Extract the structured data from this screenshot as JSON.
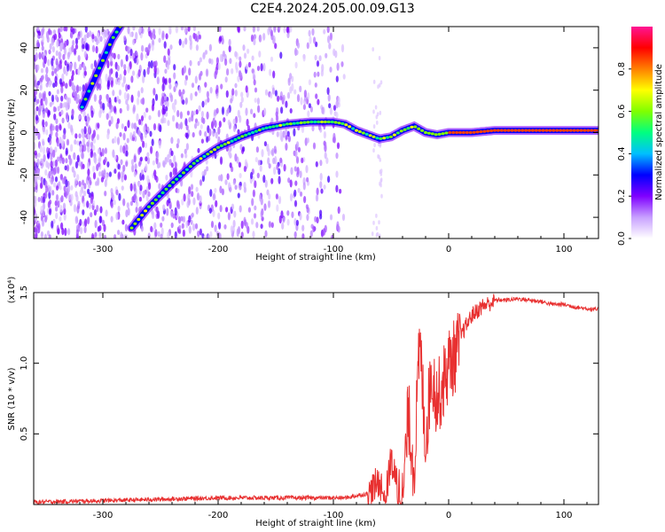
{
  "title": "C2E4.2024.205.00.09.G13",
  "chart_data": [
    {
      "type": "heatmap",
      "xlabel": "Height of straight line (km)",
      "ylabel": "Frequency (Hz)",
      "xlim": [
        -360,
        130
      ],
      "ylim": [
        -50,
        50
      ],
      "x_ticks": [
        -300,
        -200,
        -100,
        0,
        100
      ],
      "x_tick_labels": [
        "-300",
        "-200",
        "-100",
        "0",
        "100"
      ],
      "y_ticks": [
        -40,
        -20,
        0,
        20,
        40
      ],
      "y_tick_labels": [
        "-40",
        "-20",
        "0",
        "20",
        "40"
      ],
      "ridge": {
        "x": [
          -275,
          -260,
          -240,
          -220,
          -200,
          -180,
          -160,
          -140,
          -120,
          -100,
          -90,
          -80,
          -70,
          -60,
          -50,
          -40,
          -30,
          -20,
          -10,
          0,
          20,
          40,
          60,
          80,
          100,
          130
        ],
        "y": [
          -45,
          -35,
          -24,
          -14,
          -7,
          -2,
          2,
          4,
          5,
          5,
          4,
          1,
          -1,
          -3,
          -2,
          1,
          3,
          0,
          -1,
          0,
          0,
          1,
          1,
          1,
          1,
          1
        ]
      },
      "upper_branch": {
        "x": [
          -318,
          -310,
          -300,
          -292,
          -285
        ],
        "y": [
          12,
          22,
          34,
          44,
          50
        ]
      },
      "colorbar": {
        "label": "Normalized spectral amplitude",
        "range": [
          0,
          1
        ],
        "ticks": [
          0.0,
          0.2,
          0.4,
          0.6,
          0.8
        ],
        "tick_labels": [
          "0.0",
          "0.2",
          "0.4",
          "0.6",
          "0.8"
        ],
        "colors": [
          "#ffffff",
          "#c8a0ff",
          "#7f00ff",
          "#0000ff",
          "#00bfff",
          "#00ff80",
          "#80ff00",
          "#ffff00",
          "#ff8000",
          "#ff0000",
          "#ff1493"
        ]
      }
    },
    {
      "type": "line",
      "xlabel": "Height of straight line (km)",
      "ylabel": "SNR (10 * v/v)",
      "scale_label": "(x10⁴)",
      "xlim": [
        -360,
        130
      ],
      "ylim": [
        0,
        1.5
      ],
      "x_ticks": [
        -300,
        -200,
        -100,
        0,
        100
      ],
      "x_tick_labels": [
        "-300",
        "-200",
        "-100",
        "0",
        "100"
      ],
      "y_ticks": [
        0.5,
        1.0,
        1.5
      ],
      "y_tick_labels": [
        "0.5",
        "1.0",
        "1.5"
      ],
      "color": "#e83030",
      "x": [
        -360,
        -300,
        -200,
        -120,
        -90,
        -70,
        -60,
        -55,
        -50,
        -45,
        -40,
        -35,
        -30,
        -25,
        -20,
        -15,
        -10,
        -5,
        0,
        5,
        10,
        20,
        30,
        40,
        50,
        60,
        70,
        80,
        90,
        100,
        110,
        120,
        130
      ],
      "y": [
        0.02,
        0.03,
        0.05,
        0.05,
        0.05,
        0.08,
        0.2,
        0.05,
        0.35,
        0.15,
        0.05,
        0.7,
        0.3,
        1.2,
        0.5,
        1.0,
        0.8,
        0.9,
        1.05,
        1.1,
        1.2,
        1.35,
        1.42,
        1.45,
        1.45,
        1.46,
        1.45,
        1.44,
        1.42,
        1.42,
        1.4,
        1.39,
        1.38
      ]
    }
  ]
}
